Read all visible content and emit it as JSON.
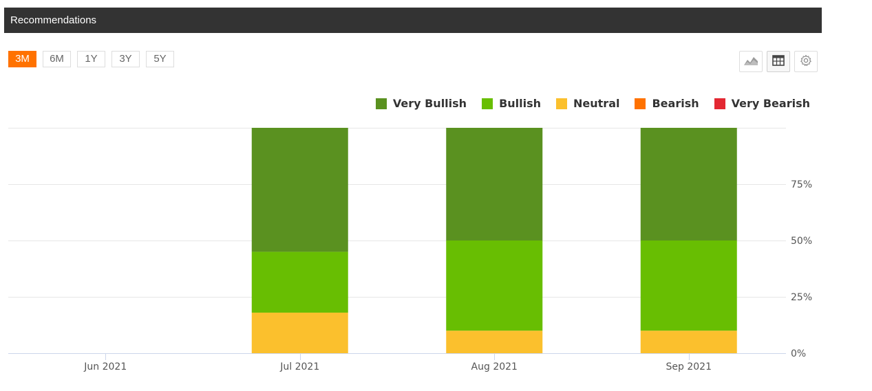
{
  "header": {
    "title": "Recommendations"
  },
  "range_buttons": [
    {
      "label": "3M",
      "active": true
    },
    {
      "label": "6M",
      "active": false
    },
    {
      "label": "1Y",
      "active": false
    },
    {
      "label": "3Y",
      "active": false
    },
    {
      "label": "5Y",
      "active": false
    }
  ],
  "tools": [
    {
      "name": "area-chart-icon"
    },
    {
      "name": "table-icon"
    },
    {
      "name": "settings-gear-icon"
    }
  ],
  "colors": {
    "header_bg": "#333333",
    "accent": "#ff7200",
    "very_bullish": "#5a9120",
    "bullish": "#68be02",
    "neutral": "#fbc02d",
    "bearish": "#ff7200",
    "very_bearish": "#e32832"
  },
  "chart_data": {
    "type": "bar",
    "stacked": true,
    "categories": [
      "Jun 2021",
      "Jul 2021",
      "Aug 2021",
      "Sep 2021"
    ],
    "y_tick_labels": [
      "0%",
      "25%",
      "50%",
      "75%"
    ],
    "ylim": [
      0,
      100
    ],
    "grid": true,
    "legend_position": "top-right",
    "y_axis_side": "right",
    "series": [
      {
        "name": "Neutral",
        "color": "#fbc02d",
        "values": [
          0,
          18,
          10,
          10
        ]
      },
      {
        "name": "Bullish",
        "color": "#68be02",
        "values": [
          0,
          27,
          40,
          40
        ]
      },
      {
        "name": "Very Bullish",
        "color": "#5a9120",
        "values": [
          0,
          55,
          50,
          50
        ]
      },
      {
        "name": "Bearish",
        "color": "#ff7200",
        "values": [
          0,
          0,
          0,
          0
        ]
      },
      {
        "name": "Very Bearish",
        "color": "#e32832",
        "values": [
          0,
          0,
          0,
          0
        ]
      }
    ],
    "legend_order": [
      "Very Bullish",
      "Bullish",
      "Neutral",
      "Bearish",
      "Very Bearish"
    ]
  }
}
